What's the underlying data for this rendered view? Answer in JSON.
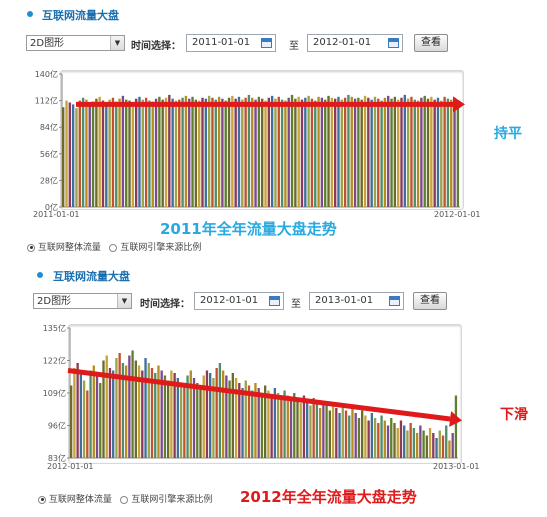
{
  "panels": [
    {
      "title": "互联网流量大盘",
      "view_select": "2D图形",
      "time_label": "时间选择：",
      "start_date": "2011-01-01",
      "to_label": "至",
      "end_date": "2012-01-01",
      "view_button": "查看",
      "radio_total": "互联网整体流量",
      "radio_source": "互联网引擎来源比例",
      "caption": "2011年全年流量大盘走势",
      "trend_label": "持平"
    },
    {
      "title": "互联网流量大盘",
      "view_select": "2D图形",
      "time_label": "时间选择：",
      "start_date": "2012-01-01",
      "to_label": "至",
      "end_date": "2013-01-01",
      "view_button": "查看",
      "radio_total": "互联网整体流量",
      "radio_source": "互联网引擎来源比例",
      "caption": "2012年全年流量大盘走势",
      "trend_label": "下滑"
    }
  ],
  "chart_data": [
    {
      "type": "bar",
      "title": "",
      "ylabel": "",
      "ylim": [
        0,
        140
      ],
      "yticks": [
        "0亿",
        "28亿",
        "56亿",
        "84亿",
        "112亿",
        "140亿"
      ],
      "xticks": [
        "2011-01-01",
        "2012-01-01"
      ],
      "bar_count": 120,
      "values_profile": [
        105,
        112,
        110,
        108,
        104,
        112,
        115,
        113,
        109,
        111,
        114,
        116,
        112,
        110,
        113,
        115,
        111,
        114,
        117,
        113,
        112,
        110,
        114,
        116,
        113,
        115,
        112,
        111,
        114,
        116,
        113,
        115,
        118,
        114,
        112,
        113,
        115,
        117,
        114,
        116,
        113,
        112,
        115,
        114,
        117,
        115,
        113,
        116,
        114,
        112,
        115,
        117,
        114,
        116,
        113,
        115,
        118,
        115,
        113,
        116,
        114,
        112,
        115,
        117,
        114,
        116,
        113,
        112,
        115,
        118,
        114,
        116,
        113,
        115,
        117,
        114,
        112,
        116,
        115,
        113,
        117,
        115,
        114,
        116,
        113,
        115,
        118,
        116,
        114,
        115,
        113,
        117,
        115,
        113,
        116,
        114,
        112,
        115,
        117,
        114,
        116,
        113,
        115,
        118,
        114,
        116,
        113,
        112,
        115,
        117,
        114,
        116,
        113,
        115,
        112,
        116,
        114,
        113,
        115,
        112
      ],
      "trend_start": 108,
      "trend_end": 108,
      "colors": [
        "#6b6b2c",
        "#c8a23a",
        "#8a3b5a",
        "#3f6f9a",
        "#9aa34a",
        "#c0532e",
        "#4f8d6b",
        "#b58c1f",
        "#7d4a8e",
        "#5e7f2d"
      ]
    },
    {
      "type": "bar",
      "title": "",
      "ylabel": "",
      "ylim": [
        83,
        135
      ],
      "yticks": [
        "83亿",
        "96亿",
        "109亿",
        "122亿",
        "135亿"
      ],
      "xticks": [
        "2012-01-01",
        "2013-01-01"
      ],
      "bar_count": 120,
      "values_profile": [
        112,
        119,
        121,
        117,
        114,
        110,
        118,
        120,
        116,
        113,
        122,
        124,
        119,
        118,
        123,
        125,
        121,
        120,
        124,
        126,
        122,
        120,
        118,
        123,
        121,
        119,
        117,
        120,
        118,
        116,
        114,
        118,
        117,
        115,
        113,
        112,
        116,
        118,
        115,
        113,
        112,
        116,
        118,
        117,
        115,
        119,
        121,
        118,
        116,
        114,
        117,
        115,
        113,
        111,
        114,
        112,
        110,
        113,
        111,
        109,
        112,
        110,
        108,
        111,
        109,
        107,
        110,
        108,
        106,
        109,
        107,
        105,
        108,
        106,
        104,
        107,
        105,
        103,
        106,
        104,
        102,
        105,
        103,
        101,
        104,
        102,
        100,
        103,
        101,
        99,
        102,
        100,
        98,
        101,
        99,
        97,
        100,
        98,
        96,
        99,
        97,
        95,
        98,
        96,
        94,
        97,
        95,
        93,
        96,
        94,
        92,
        95,
        93,
        91,
        94,
        92,
        96,
        90,
        93,
        108
      ],
      "trend_start": 118,
      "trend_end": 98,
      "colors": [
        "#6b6b2c",
        "#c8a23a",
        "#8a3b5a",
        "#3f6f9a",
        "#9aa34a",
        "#c0532e",
        "#4f8d6b",
        "#b58c1f",
        "#7d4a8e",
        "#5e7f2d"
      ]
    }
  ]
}
